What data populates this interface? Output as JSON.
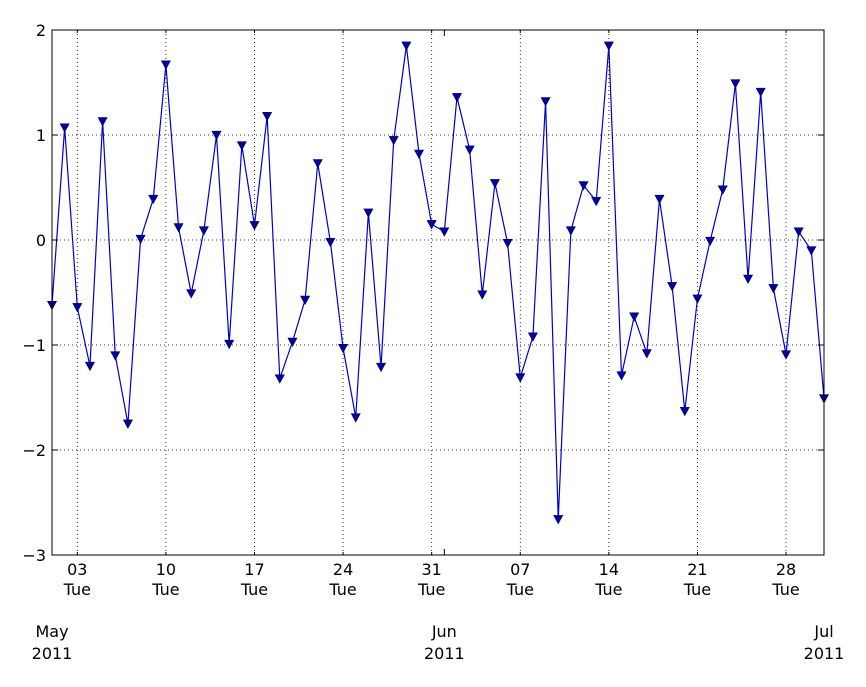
{
  "chart_data": {
    "type": "line",
    "title": "",
    "xlabel": "",
    "ylabel": "",
    "ylim": [
      -3,
      2
    ],
    "xlim": [
      "2011-05-01",
      "2011-07-01"
    ],
    "grid": true,
    "line_color": "#0000cc",
    "marker": "triangle-down",
    "y_ticks": [
      {
        "value": -3,
        "label": "−3"
      },
      {
        "value": -2,
        "label": "−2"
      },
      {
        "value": -1,
        "label": "−1"
      },
      {
        "value": 0,
        "label": "0"
      },
      {
        "value": 1,
        "label": "1"
      },
      {
        "value": 2,
        "label": "2"
      }
    ],
    "x_minor_ticks": [
      {
        "date": "2011-05-03",
        "day": "03",
        "weekday": "Tue"
      },
      {
        "date": "2011-05-10",
        "day": "10",
        "weekday": "Tue"
      },
      {
        "date": "2011-05-17",
        "day": "17",
        "weekday": "Tue"
      },
      {
        "date": "2011-05-24",
        "day": "24",
        "weekday": "Tue"
      },
      {
        "date": "2011-05-31",
        "day": "31",
        "weekday": "Tue"
      },
      {
        "date": "2011-06-07",
        "day": "07",
        "weekday": "Tue"
      },
      {
        "date": "2011-06-14",
        "day": "14",
        "weekday": "Tue"
      },
      {
        "date": "2011-06-21",
        "day": "21",
        "weekday": "Tue"
      },
      {
        "date": "2011-06-28",
        "day": "28",
        "weekday": "Tue"
      }
    ],
    "x_major_ticks": [
      {
        "date": "2011-05-01",
        "month": "May",
        "year": "2011"
      },
      {
        "date": "2011-06-01",
        "month": "Jun",
        "year": "2011"
      },
      {
        "date": "2011-07-01",
        "month": "Jul",
        "year": "2011"
      }
    ],
    "x": [
      "2011-05-01",
      "2011-05-02",
      "2011-05-03",
      "2011-05-04",
      "2011-05-05",
      "2011-05-06",
      "2011-05-07",
      "2011-05-08",
      "2011-05-09",
      "2011-05-10",
      "2011-05-11",
      "2011-05-12",
      "2011-05-13",
      "2011-05-14",
      "2011-05-15",
      "2011-05-16",
      "2011-05-17",
      "2011-05-18",
      "2011-05-19",
      "2011-05-20",
      "2011-05-21",
      "2011-05-22",
      "2011-05-23",
      "2011-05-24",
      "2011-05-25",
      "2011-05-26",
      "2011-05-27",
      "2011-05-28",
      "2011-05-29",
      "2011-05-30",
      "2011-05-31",
      "2011-06-01",
      "2011-06-02",
      "2011-06-03",
      "2011-06-04",
      "2011-06-05",
      "2011-06-06",
      "2011-06-07",
      "2011-06-08",
      "2011-06-09",
      "2011-06-10",
      "2011-06-11",
      "2011-06-12",
      "2011-06-13",
      "2011-06-14",
      "2011-06-15",
      "2011-06-16",
      "2011-06-17",
      "2011-06-18",
      "2011-06-19",
      "2011-06-20",
      "2011-06-21",
      "2011-06-22",
      "2011-06-23",
      "2011-06-24",
      "2011-06-25",
      "2011-06-26",
      "2011-06-27",
      "2011-06-28",
      "2011-06-29",
      "2011-06-30",
      "2011-07-01"
    ],
    "series": [
      {
        "values": [
          -0.62,
          1.07,
          -0.64,
          -1.2,
          1.13,
          -1.1,
          -1.75,
          0.01,
          0.39,
          1.67,
          0.12,
          -0.51,
          0.09,
          1.0,
          -0.99,
          0.9,
          0.14,
          1.18,
          -1.32,
          -0.97,
          -0.57,
          0.73,
          -0.02,
          -1.03,
          -1.69,
          0.26,
          -1.21,
          0.95,
          1.85,
          0.82,
          0.15,
          0.08,
          1.36,
          0.86,
          -0.52,
          0.54,
          -0.03,
          -1.31,
          -0.92,
          1.32,
          -2.66,
          0.09,
          0.52,
          0.37,
          1.85,
          -1.29,
          -0.73,
          -1.08,
          0.39,
          -0.44,
          -1.63,
          -0.56,
          -0.01,
          0.48,
          1.49,
          -0.37,
          1.41,
          -0.46,
          -1.09,
          0.08,
          -0.1,
          -1.51
        ]
      }
    ]
  }
}
